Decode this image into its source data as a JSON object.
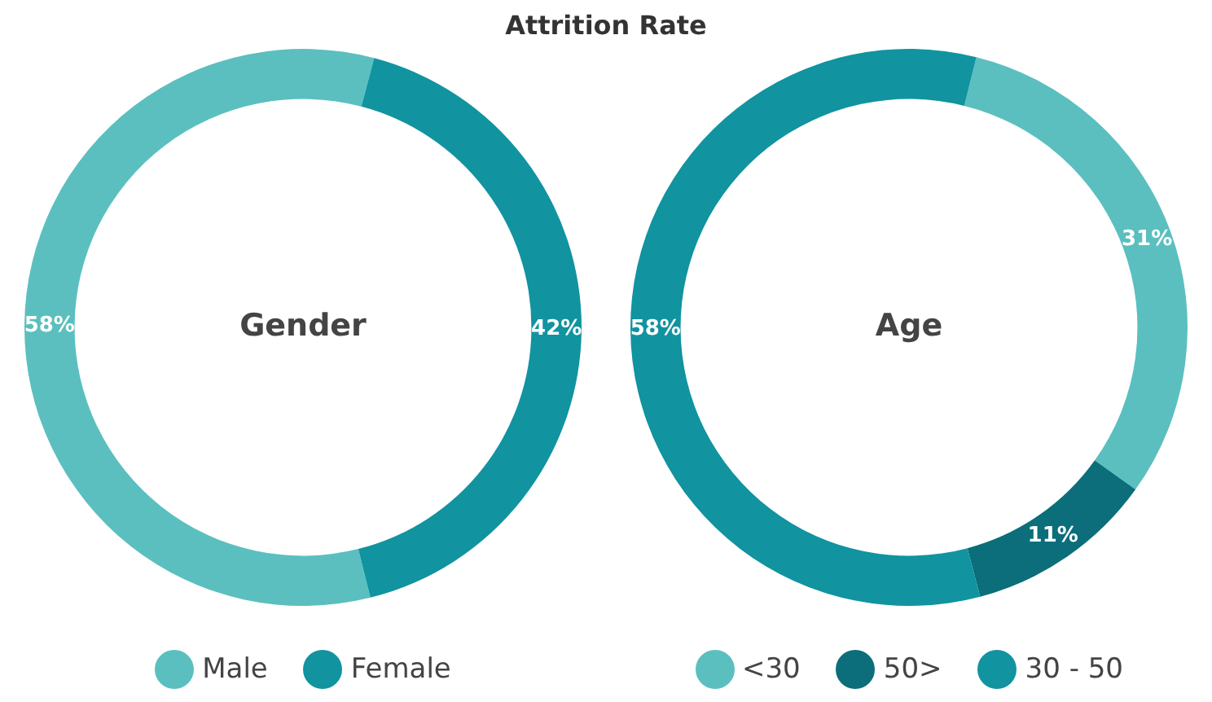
{
  "chart_data": [
    {
      "type": "donut",
      "title": "Attrition Rate",
      "annotations": [
        "Gender"
      ],
      "categories": [
        "Male",
        "Female"
      ],
      "values": [
        58,
        42
      ],
      "colors": [
        "#5bbfbf",
        "#1193a0"
      ],
      "value_labels": [
        "58%",
        "42%"
      ],
      "legend": "bottom"
    },
    {
      "type": "donut",
      "annotations": [
        "Age"
      ],
      "categories": [
        "<30",
        "50>",
        "30 - 50"
      ],
      "values": [
        31,
        11,
        58
      ],
      "colors": [
        "#5bbfbf",
        "#0b6e7a",
        "#1193a0"
      ],
      "value_labels": [
        "31%",
        "11%",
        "58%"
      ],
      "legend": "bottom"
    }
  ]
}
